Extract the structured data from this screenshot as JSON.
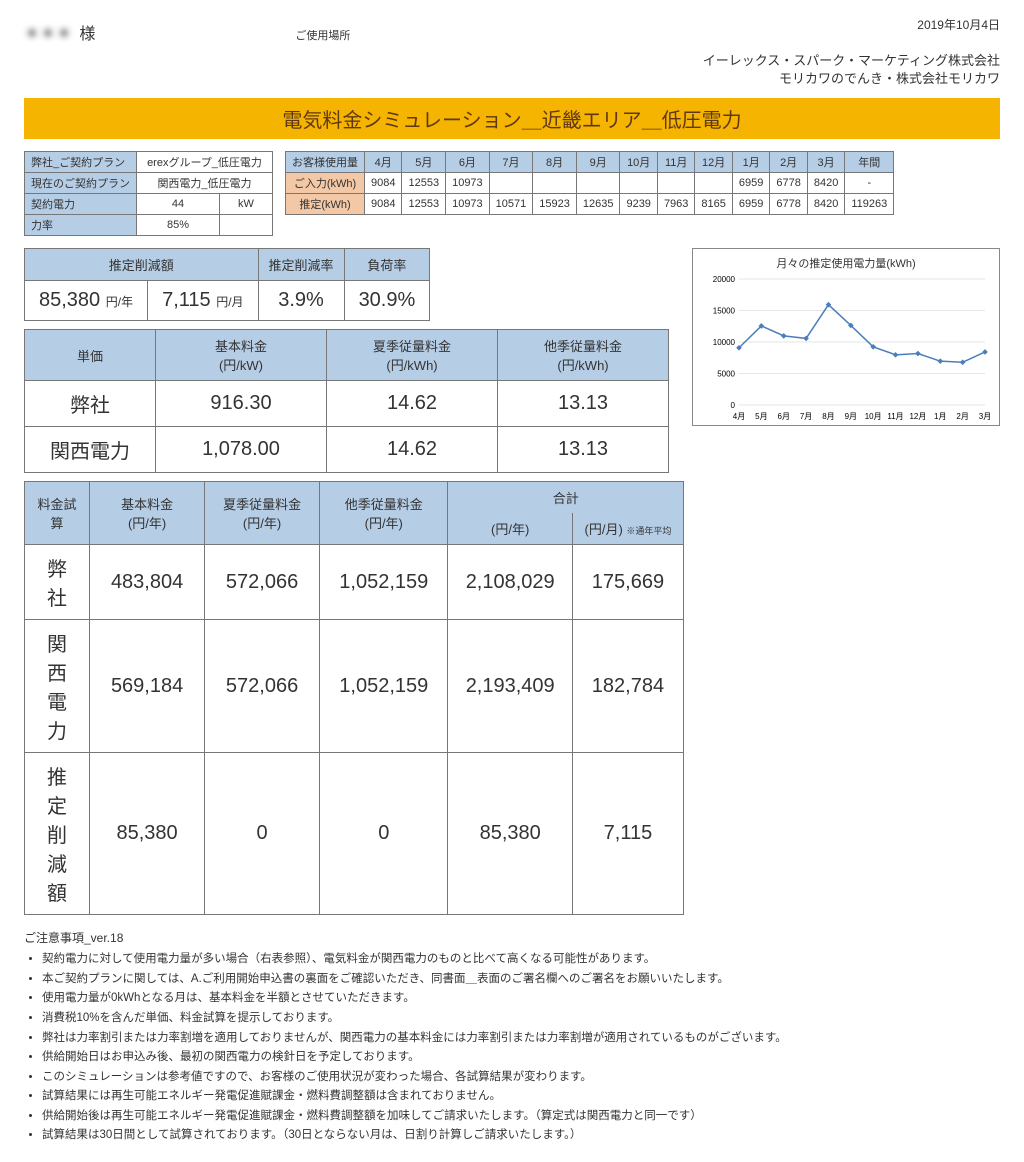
{
  "date": "2019年10月4日",
  "customer_name": "＊＊＊",
  "customer_suffix": "様",
  "usage_location_label": "ご使用場所",
  "company1": "イーレックス・スパーク・マーケティング株式会社",
  "company2": "モリカワのでんき・株式会社モリカワ",
  "title": "電気料金シミュレーション＿近畿エリア＿低圧電力",
  "plan": {
    "rows": [
      {
        "label": "弊社_ご契約プラン",
        "value": "erexグループ_低圧電力"
      },
      {
        "label": "現在のご契約プラン",
        "value": "関西電力_低圧電力"
      },
      {
        "label": "契約電力",
        "value": "44",
        "unit": "kW"
      },
      {
        "label": "力率",
        "value": "85%",
        "unit": ""
      }
    ]
  },
  "usage": {
    "header_label": "お客様使用量",
    "months": [
      "4月",
      "5月",
      "6月",
      "7月",
      "8月",
      "9月",
      "10月",
      "11月",
      "12月",
      "1月",
      "2月",
      "3月",
      "年間"
    ],
    "input_label": "ご入力(kWh)",
    "input_row": [
      "9084",
      "12553",
      "10973",
      "",
      "",
      "",
      "",
      "",
      "",
      "6959",
      "6778",
      "8420",
      "-"
    ],
    "est_label": "推定(kWh)",
    "est_row": [
      "9084",
      "12553",
      "10973",
      "10571",
      "15923",
      "12635",
      "9239",
      "7963",
      "8165",
      "6959",
      "6778",
      "8420",
      "119263"
    ]
  },
  "summary": {
    "headers": {
      "reduction_amount": "推定削減額",
      "reduction_rate": "推定削減率",
      "load_factor": "負荷率"
    },
    "values": {
      "per_year": "85,380",
      "per_year_unit": "円/年",
      "per_month": "7,115",
      "per_month_unit": "円/月",
      "rate": "3.9%",
      "load": "30.9%"
    }
  },
  "chart": {
    "title": "月々の推定使用電力量(kWh)",
    "ylim": [
      0,
      20000
    ],
    "ytick_step": 5000,
    "x_labels": [
      "4月",
      "5月",
      "6月",
      "7月",
      "8月",
      "9月",
      "10月",
      "11月",
      "12月",
      "1月",
      "2月",
      "3月"
    ],
    "values": [
      9084,
      12553,
      10973,
      10571,
      15923,
      12635,
      9239,
      7963,
      8165,
      6959,
      6778,
      8420
    ],
    "line_color": "#4a7ebb",
    "grid_color": "#cccccc",
    "background": "#ffffff"
  },
  "price_table": {
    "header": [
      "単価",
      "基本料金\n(円/kW)",
      "夏季従量料金\n(円/kWh)",
      "他季従量料金\n(円/kWh)"
    ],
    "rows": [
      {
        "label": "弊社",
        "cells": [
          "916.30",
          "14.62",
          "13.13"
        ]
      },
      {
        "label": "関西電力",
        "cells": [
          "1,078.00",
          "14.62",
          "13.13"
        ]
      }
    ]
  },
  "calc_table": {
    "header_top": [
      "料金試算",
      "基本料金\n(円/年)",
      "夏季従量料金\n(円/年)",
      "他季従量料金\n(円/年)",
      "合計"
    ],
    "total_sub": [
      "(円/年)",
      "(円/月)"
    ],
    "avg_label": "※通年平均",
    "rows": [
      {
        "label": "弊社",
        "cells": [
          "483,804",
          "572,066",
          "1,052,159",
          "2,108,029",
          "175,669"
        ]
      },
      {
        "label": "関西電力",
        "cells": [
          "569,184",
          "572,066",
          "1,052,159",
          "2,193,409",
          "182,784"
        ]
      },
      {
        "label": "推定削減額",
        "cells": [
          "85,380",
          "0",
          "0",
          "85,380",
          "7,115"
        ]
      }
    ]
  },
  "notes_title": "ご注意事項_ver.18",
  "notes": [
    "契約電力に対して使用電力量が多い場合（右表参照）、電気料金が関西電力のものと比べて高くなる可能性があります。",
    "本ご契約プランに関しては、A.ご利用開始申込書の裏面をご確認いただき、同書面＿表面のご署名欄へのご署名をお願いいたします。",
    "使用電力量が0kWhとなる月は、基本料金を半額とさせていただきます。",
    "消費税10%を含んだ単価、料金試算を提示しております。",
    "弊社は力率割引または力率割増を適用しておりませんが、関西電力の基本料金には力率割引または力率割増が適用されているものがございます。",
    "供給開始日はお申込み後、最初の関西電力の検針日を予定しております。",
    "このシミュレーションは参考値ですので、お客様のご使用状況が変わった場合、各試算結果が変わります。",
    "試算結果には再生可能エネルギー発電促進賦課金・燃料費調整額は含まれておりません。",
    "供給開始後は再生可能エネルギー発電促進賦課金・燃料費調整額を加味してご請求いたします。（算定式は関西電力と同一です）",
    "試算結果は30日間として試算されております。（30日とならない月は、日割り計算しご請求いたします。）"
  ]
}
